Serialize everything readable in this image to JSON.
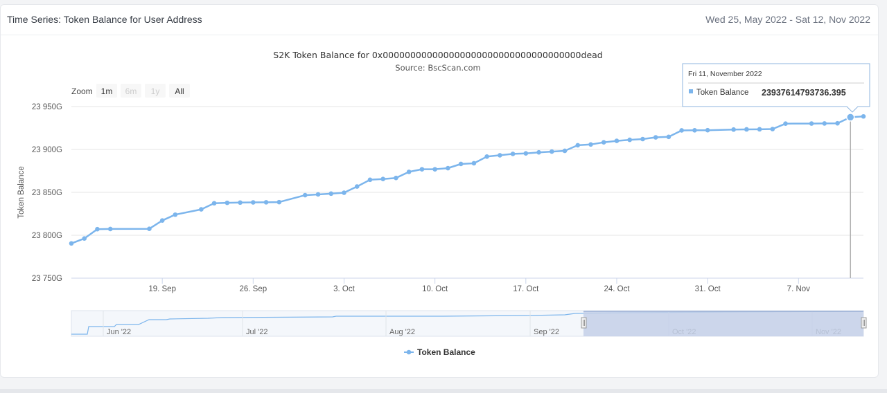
{
  "card": {
    "title": "Time Series: Token Balance for User Address",
    "date_range": "Wed 25, May 2022 - Sat 12, Nov 2022"
  },
  "zoom": {
    "label": "Zoom",
    "buttons": [
      "1m",
      "6m",
      "1y",
      "All"
    ],
    "active": "1m"
  },
  "navigator": {
    "labels": [
      "Jun '22",
      "Jul '22",
      "Aug '22",
      "Sep '22",
      "Oct '22",
      "Nov '22"
    ]
  },
  "tooltip": {
    "date": "Fri 11, November 2022",
    "series": "Token Balance",
    "value": "23937614793736.395"
  },
  "colors": {
    "series": "#7cb5ec",
    "navigator_mask": "#c4d0e8",
    "grid": "#e6e6e6"
  },
  "chart_data": {
    "type": "line",
    "title": "S2K Token Balance for 0x000000000000000000000000000000000000dead",
    "subtitle": "Source: BscScan.com",
    "ylabel": "Token Balance",
    "xlabel": "",
    "y_ticks": [
      "23 750G",
      "23 800G",
      "23 850G",
      "23 900G",
      "23 950G"
    ],
    "y_tick_values": [
      23750,
      23800,
      23850,
      23900,
      23950
    ],
    "x_ticks": [
      "19. Sep",
      "26. Sep",
      "3. Oct",
      "10. Oct",
      "17. Oct",
      "24. Oct",
      "31. Oct",
      "7. Nov"
    ],
    "x_tick_dates": [
      "2022-09-19",
      "2022-09-26",
      "2022-10-03",
      "2022-10-10",
      "2022-10-17",
      "2022-10-24",
      "2022-10-31",
      "2022-11-07"
    ],
    "ylim": [
      23750,
      23950
    ],
    "xlim": [
      "2022-09-12",
      "2022-11-12"
    ],
    "grid": true,
    "legend": "bottom-center",
    "series": [
      {
        "name": "Token Balance",
        "x": [
          "2022-09-12",
          "2022-09-13",
          "2022-09-14",
          "2022-09-15",
          "2022-09-18",
          "2022-09-19",
          "2022-09-20",
          "2022-09-22",
          "2022-09-23",
          "2022-09-24",
          "2022-09-25",
          "2022-09-26",
          "2022-09-27",
          "2022-09-28",
          "2022-09-30",
          "2022-10-01",
          "2022-10-02",
          "2022-10-03",
          "2022-10-04",
          "2022-10-05",
          "2022-10-06",
          "2022-10-07",
          "2022-10-08",
          "2022-10-09",
          "2022-10-10",
          "2022-10-11",
          "2022-10-12",
          "2022-10-13",
          "2022-10-14",
          "2022-10-15",
          "2022-10-16",
          "2022-10-17",
          "2022-10-18",
          "2022-10-19",
          "2022-10-20",
          "2022-10-21",
          "2022-10-22",
          "2022-10-23",
          "2022-10-24",
          "2022-10-25",
          "2022-10-26",
          "2022-10-27",
          "2022-10-28",
          "2022-10-29",
          "2022-10-30",
          "2022-10-31",
          "2022-11-02",
          "2022-11-03",
          "2022-11-04",
          "2022-11-05",
          "2022-11-06",
          "2022-11-08",
          "2022-11-09",
          "2022-11-10",
          "2022-11-11",
          "2022-11-12"
        ],
        "values": [
          23790.5,
          23796.2,
          23807.1,
          23807.3,
          23807.5,
          23817.2,
          23824.0,
          23830.2,
          23837.3,
          23837.8,
          23838.1,
          23838.3,
          23838.4,
          23838.6,
          23846.7,
          23847.6,
          23848.5,
          23849.6,
          23856.8,
          23864.7,
          23865.6,
          23866.8,
          23873.9,
          23876.9,
          23876.9,
          23878.2,
          23883.1,
          23883.9,
          23891.7,
          23893.2,
          23894.8,
          23895.4,
          23896.6,
          23897.5,
          23898.4,
          23904.9,
          23905.8,
          23908.3,
          23910.0,
          23911.2,
          23912.1,
          23914.1,
          23914.7,
          23922.2,
          23922.3,
          23922.4,
          23923.2,
          23923.4,
          23923.5,
          23923.8,
          23930.1,
          23930.2,
          23930.3,
          23930.5,
          23937.6,
          23938.5
        ]
      }
    ]
  }
}
